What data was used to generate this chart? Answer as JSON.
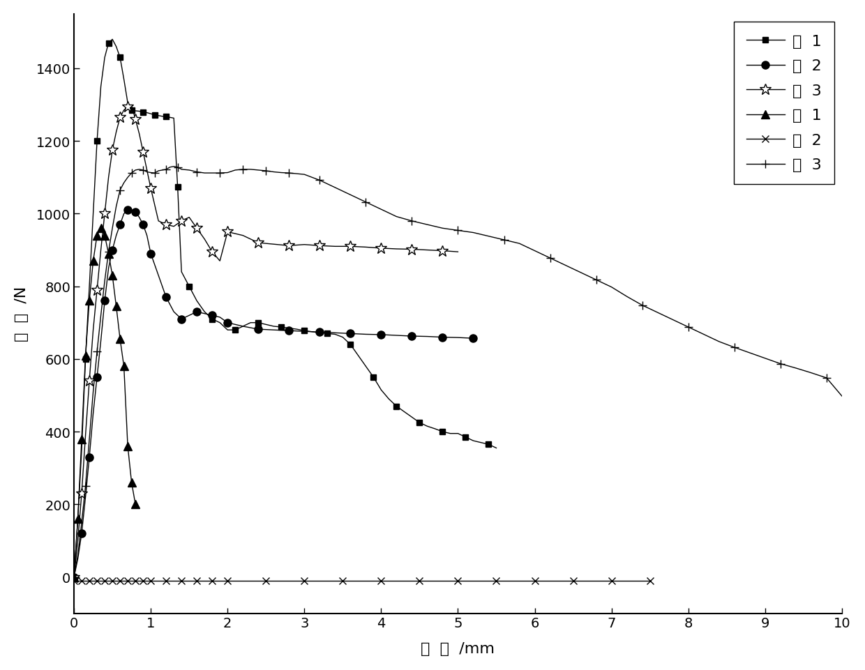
{
  "title": "",
  "xlabel": "位  移  /mm",
  "ylabel": "荷  载  /N",
  "xlim": [
    0,
    10
  ],
  "ylim": [
    -100,
    1550
  ],
  "xticks": [
    0,
    1,
    2,
    3,
    4,
    5,
    6,
    7,
    8,
    9,
    10
  ],
  "yticks": [
    0,
    200,
    400,
    600,
    800,
    1000,
    1200,
    1400
  ],
  "background_color": "#ffffff",
  "series": [
    {
      "label": "实  1",
      "marker": "s",
      "color": "#000000",
      "markerfacecolor": "#000000",
      "markersize": 6,
      "linewidth": 1.0,
      "markevery": 3,
      "x": [
        0.0,
        0.05,
        0.1,
        0.15,
        0.2,
        0.25,
        0.3,
        0.35,
        0.4,
        0.45,
        0.5,
        0.55,
        0.6,
        0.65,
        0.7,
        0.75,
        0.8,
        0.85,
        0.9,
        0.95,
        1.0,
        1.05,
        1.1,
        1.15,
        1.2,
        1.25,
        1.3,
        1.35,
        1.4,
        1.45,
        1.5,
        1.6,
        1.7,
        1.8,
        1.9,
        2.0,
        2.1,
        2.2,
        2.3,
        2.4,
        2.5,
        2.6,
        2.7,
        2.8,
        2.9,
        3.0,
        3.1,
        3.2,
        3.3,
        3.4,
        3.5,
        3.6,
        3.7,
        3.8,
        3.9,
        4.0,
        4.1,
        4.2,
        4.3,
        4.4,
        4.5,
        4.6,
        4.7,
        4.8,
        4.9,
        5.0,
        5.1,
        5.2,
        5.3,
        5.4,
        5.5
      ],
      "y": [
        0,
        160,
        350,
        600,
        800,
        1000,
        1200,
        1350,
        1430,
        1470,
        1480,
        1460,
        1430,
        1370,
        1305,
        1285,
        1283,
        1282,
        1280,
        1278,
        1275,
        1272,
        1270,
        1268,
        1268,
        1265,
        1263,
        1073,
        840,
        820,
        800,
        760,
        730,
        710,
        700,
        680,
        680,
        690,
        700,
        700,
        695,
        690,
        688,
        685,
        682,
        678,
        675,
        672,
        670,
        668,
        660,
        640,
        610,
        580,
        550,
        515,
        490,
        470,
        455,
        440,
        425,
        415,
        408,
        400,
        395,
        395,
        385,
        375,
        370,
        365,
        355
      ]
    },
    {
      "label": "实  2",
      "marker": "o",
      "color": "#000000",
      "markerfacecolor": "#000000",
      "markersize": 8,
      "linewidth": 1.0,
      "markevery": 2,
      "x": [
        0.0,
        0.05,
        0.1,
        0.15,
        0.2,
        0.25,
        0.3,
        0.35,
        0.4,
        0.45,
        0.5,
        0.55,
        0.6,
        0.65,
        0.7,
        0.75,
        0.8,
        0.85,
        0.9,
        0.95,
        1.0,
        1.1,
        1.2,
        1.3,
        1.4,
        1.5,
        1.6,
        1.7,
        1.8,
        1.9,
        2.0,
        2.2,
        2.4,
        2.6,
        2.8,
        3.0,
        3.2,
        3.4,
        3.6,
        3.8,
        4.0,
        4.2,
        4.4,
        4.6,
        4.8,
        5.0,
        5.2
      ],
      "y": [
        0,
        50,
        120,
        220,
        330,
        450,
        550,
        650,
        760,
        850,
        900,
        940,
        970,
        1000,
        1010,
        1010,
        1005,
        990,
        970,
        940,
        890,
        830,
        770,
        730,
        710,
        720,
        730,
        725,
        720,
        715,
        700,
        690,
        682,
        680,
        678,
        676,
        674,
        672,
        670,
        668,
        667,
        665,
        663,
        662,
        660,
        659,
        657
      ]
    },
    {
      "label": "实  3",
      "marker": "*",
      "color": "#000000",
      "markerfacecolor": "#ffffff",
      "markersize": 12,
      "linewidth": 1.0,
      "markevery": 2,
      "x": [
        0.0,
        0.05,
        0.1,
        0.15,
        0.2,
        0.25,
        0.3,
        0.35,
        0.4,
        0.45,
        0.5,
        0.55,
        0.6,
        0.65,
        0.7,
        0.75,
        0.8,
        0.85,
        0.9,
        0.95,
        1.0,
        1.1,
        1.2,
        1.3,
        1.4,
        1.5,
        1.6,
        1.7,
        1.8,
        1.9,
        2.0,
        2.2,
        2.4,
        2.6,
        2.8,
        3.0,
        3.2,
        3.4,
        3.6,
        3.8,
        4.0,
        4.2,
        4.4,
        4.6,
        4.8,
        5.0
      ],
      "y": [
        0,
        100,
        230,
        390,
        540,
        680,
        790,
        900,
        1000,
        1100,
        1175,
        1225,
        1265,
        1285,
        1295,
        1298,
        1260,
        1220,
        1170,
        1120,
        1070,
        980,
        970,
        965,
        980,
        990,
        960,
        930,
        895,
        870,
        950,
        940,
        920,
        916,
        912,
        915,
        912,
        910,
        910,
        908,
        905,
        903,
        902,
        900,
        898,
        895
      ]
    },
    {
      "label": "对  1",
      "marker": "^",
      "color": "#000000",
      "markerfacecolor": "#000000",
      "markersize": 8,
      "linewidth": 1.0,
      "markevery": 1,
      "x": [
        0.0,
        0.05,
        0.1,
        0.15,
        0.2,
        0.25,
        0.3,
        0.35,
        0.4,
        0.45,
        0.5,
        0.55,
        0.6,
        0.65,
        0.7,
        0.75,
        0.8
      ],
      "y": [
        0,
        160,
        380,
        610,
        760,
        870,
        940,
        960,
        940,
        890,
        830,
        745,
        655,
        580,
        360,
        260,
        200
      ]
    },
    {
      "label": "对  2",
      "marker": "x",
      "color": "#000000",
      "markerfacecolor": "#000000",
      "markersize": 7,
      "linewidth": 1.0,
      "markevery": 1,
      "x": [
        0.0,
        0.1,
        0.2,
        0.3,
        0.4,
        0.5,
        0.6,
        0.7,
        0.8,
        0.9,
        1.0,
        1.2,
        1.4,
        1.6,
        1.8,
        2.0,
        2.5,
        3.0,
        3.5,
        4.0,
        4.5,
        5.0,
        5.5,
        6.0,
        6.5,
        7.0,
        7.5
      ],
      "y": [
        -10,
        -10,
        -10,
        -10,
        -10,
        -10,
        -10,
        -10,
        -10,
        -10,
        -10,
        -10,
        -10,
        -10,
        -10,
        -10,
        -10,
        -10,
        -10,
        -10,
        -10,
        -10,
        -10,
        -10,
        -10,
        -10,
        -10
      ]
    },
    {
      "label": "对  3",
      "marker": "+",
      "color": "#000000",
      "markerfacecolor": "#000000",
      "markersize": 8,
      "linewidth": 1.0,
      "markevery": 3,
      "x": [
        0.0,
        0.05,
        0.1,
        0.15,
        0.2,
        0.25,
        0.3,
        0.35,
        0.4,
        0.45,
        0.5,
        0.55,
        0.6,
        0.65,
        0.7,
        0.75,
        0.8,
        0.85,
        0.9,
        0.95,
        1.0,
        1.05,
        1.1,
        1.15,
        1.2,
        1.25,
        1.3,
        1.35,
        1.4,
        1.5,
        1.6,
        1.7,
        1.8,
        1.9,
        2.0,
        2.1,
        2.2,
        2.3,
        2.4,
        2.5,
        2.6,
        2.7,
        2.8,
        2.9,
        3.0,
        3.2,
        3.4,
        3.6,
        3.8,
        4.0,
        4.2,
        4.4,
        4.6,
        4.8,
        5.0,
        5.2,
        5.4,
        5.6,
        5.8,
        6.0,
        6.2,
        6.4,
        6.6,
        6.8,
        7.0,
        7.2,
        7.4,
        7.6,
        7.8,
        8.0,
        8.2,
        8.4,
        8.6,
        8.8,
        9.0,
        9.2,
        9.4,
        9.6,
        9.8,
        10.0
      ],
      "y": [
        0,
        60,
        150,
        250,
        380,
        510,
        620,
        720,
        815,
        895,
        960,
        1020,
        1065,
        1085,
        1100,
        1112,
        1120,
        1122,
        1120,
        1115,
        1113,
        1112,
        1118,
        1120,
        1122,
        1128,
        1130,
        1128,
        1122,
        1120,
        1115,
        1112,
        1112,
        1112,
        1113,
        1120,
        1122,
        1122,
        1120,
        1118,
        1115,
        1113,
        1112,
        1110,
        1108,
        1092,
        1072,
        1052,
        1032,
        1012,
        992,
        980,
        970,
        960,
        954,
        948,
        938,
        928,
        918,
        898,
        878,
        858,
        838,
        818,
        798,
        772,
        748,
        728,
        708,
        688,
        668,
        648,
        632,
        617,
        602,
        587,
        575,
        562,
        548,
        498
      ]
    }
  ]
}
